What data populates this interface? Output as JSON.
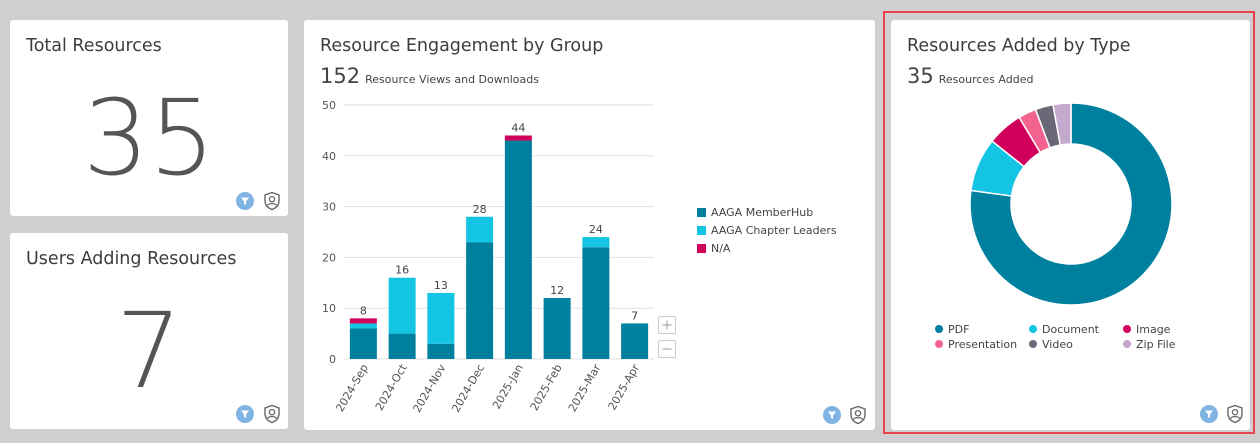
{
  "total_resources": {
    "title": "Total Resources",
    "value": "35"
  },
  "users_adding": {
    "title": "Users Adding Resources",
    "value": "7"
  },
  "engagement": {
    "title": "Resource Engagement by Group",
    "total": "152",
    "total_label": "Resource Views and Downloads",
    "zoom_in": "+",
    "zoom_out": "−"
  },
  "added_by_type": {
    "title": "Resources Added by Type",
    "total": "35",
    "total_label": "Resources Added"
  },
  "colors": {
    "memberhub": "#00809f",
    "chapter": "#13c4e3",
    "na": "#d1005d",
    "pdf": "#00809f",
    "document": "#13c4e3",
    "image": "#d1005d",
    "presentation": "#f2648f",
    "video": "#6a6877",
    "zip": "#c4a9cf",
    "filter_icon": "#7fb4e3"
  },
  "chart_data": [
    {
      "type": "bar",
      "stacked": true,
      "title": "Resource Engagement by Group",
      "categories": [
        "2024-Sep",
        "2024-Oct",
        "2024-Nov",
        "2024-Dec",
        "2025-Jan",
        "2025-Feb",
        "2025-Mar",
        "2025-Apr"
      ],
      "series": [
        {
          "name": "AAGA MemberHub",
          "values": [
            6,
            5,
            3,
            23,
            43,
            12,
            22,
            7
          ]
        },
        {
          "name": "AAGA Chapter Leaders",
          "values": [
            1,
            11,
            10,
            5,
            0,
            0,
            2,
            0
          ]
        },
        {
          "name": "N/A",
          "values": [
            1,
            0,
            0,
            0,
            1,
            0,
            0,
            0
          ]
        }
      ],
      "totals": [
        "8",
        "16",
        "13",
        "28",
        "44",
        "12",
        "24",
        "7"
      ],
      "ylim": [
        0,
        50
      ],
      "yticks": [
        "0",
        "10",
        "20",
        "30",
        "40",
        "50"
      ],
      "grid": true,
      "legend": "right"
    },
    {
      "type": "pie",
      "donut": true,
      "title": "Resources Added by Type",
      "categories": [
        "PDF",
        "Document",
        "Image",
        "Presentation",
        "Video",
        "Zip File"
      ],
      "values": [
        27,
        3,
        2,
        1,
        1,
        1
      ],
      "legend": "bottom"
    }
  ]
}
